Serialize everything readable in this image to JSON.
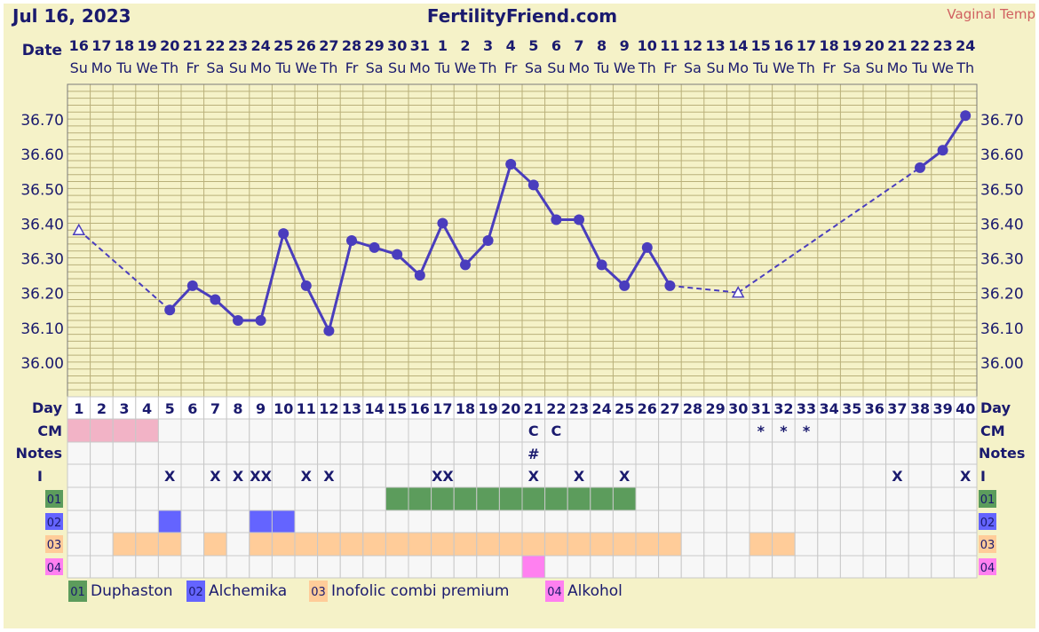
{
  "header": {
    "date": "Jul 16, 2023",
    "site": "FertilityFriend.com",
    "temp_method": "Vaginal Temp",
    "date_label": "Date",
    "day_label": "Day",
    "cm_label": "CM",
    "notes_label": "Notes",
    "intercourse_label": "I"
  },
  "colors": {
    "chart_bg": "#f5f2c8",
    "line": "#4a3dbd",
    "period": "#f2b3c6",
    "med1": "#5c9c5c",
    "med2": "#6464ff",
    "med3": "#ffcc99",
    "med4": "#ff80f0"
  },
  "chart_data": {
    "type": "line",
    "title": "",
    "ylim": [
      35.9,
      36.8
    ],
    "y_ticks": [
      "36.00",
      "36.10",
      "36.20",
      "36.30",
      "36.40",
      "36.50",
      "36.60",
      "36.70"
    ],
    "dates": [
      "16",
      "17",
      "18",
      "19",
      "20",
      "21",
      "22",
      "23",
      "24",
      "25",
      "26",
      "27",
      "28",
      "29",
      "30",
      "31",
      "1",
      "2",
      "3",
      "4",
      "5",
      "6",
      "7",
      "8",
      "9",
      "10",
      "11",
      "12",
      "13",
      "14",
      "15",
      "16",
      "17",
      "18",
      "19",
      "20",
      "21",
      "22",
      "23",
      "24"
    ],
    "weekdays": [
      "Su",
      "Mo",
      "Tu",
      "We",
      "Th",
      "Fr",
      "Sa",
      "Su",
      "Mo",
      "Tu",
      "We",
      "Th",
      "Fr",
      "Sa",
      "Su",
      "Mo",
      "Tu",
      "We",
      "Th",
      "Fr",
      "Sa",
      "Su",
      "Mo",
      "Tu",
      "We",
      "Th",
      "Fr",
      "Sa",
      "Su",
      "Mo",
      "Tu",
      "We",
      "Th",
      "Fr",
      "Sa",
      "Su",
      "Mo",
      "Tu",
      "We",
      "Th"
    ],
    "days": [
      "1",
      "2",
      "3",
      "4",
      "5",
      "6",
      "7",
      "8",
      "9",
      "10",
      "11",
      "12",
      "13",
      "14",
      "15",
      "16",
      "17",
      "18",
      "19",
      "20",
      "21",
      "22",
      "23",
      "24",
      "25",
      "26",
      "27",
      "28",
      "29",
      "30",
      "31",
      "32",
      "33",
      "34",
      "35",
      "36",
      "37",
      "38",
      "39",
      "40"
    ],
    "temps": [
      36.38,
      null,
      null,
      null,
      36.15,
      36.22,
      36.18,
      36.12,
      36.12,
      36.37,
      36.22,
      36.09,
      36.35,
      36.33,
      36.31,
      36.25,
      36.4,
      36.28,
      36.35,
      36.57,
      36.51,
      36.41,
      36.41,
      36.28,
      36.22,
      36.33,
      36.22,
      null,
      null,
      36.2,
      null,
      null,
      null,
      null,
      null,
      null,
      null,
      36.56,
      36.61,
      36.71
    ],
    "open_markers_days": [
      1,
      30
    ],
    "dashed_segments": [
      [
        1,
        5
      ],
      [
        27,
        30
      ],
      [
        30,
        38
      ]
    ],
    "solid_segments": [
      [
        5,
        27
      ],
      [
        38,
        40
      ]
    ],
    "period_days": [
      1,
      2,
      3,
      4
    ],
    "cm": [
      {
        "day": 21,
        "mark": "C"
      },
      {
        "day": 22,
        "mark": "C"
      },
      {
        "day": 31,
        "mark": "*"
      },
      {
        "day": 32,
        "mark": "*"
      },
      {
        "day": 33,
        "mark": "*"
      }
    ],
    "notes": [
      {
        "day": 21,
        "mark": "#"
      }
    ],
    "intercourse": [
      {
        "day": 5,
        "mark": "X"
      },
      {
        "day": 7,
        "mark": "X"
      },
      {
        "day": 8,
        "mark": "X"
      },
      {
        "day": 9,
        "mark": "XX"
      },
      {
        "day": 11,
        "mark": "X"
      },
      {
        "day": 12,
        "mark": "X"
      },
      {
        "day": 17,
        "mark": "XX"
      },
      {
        "day": 21,
        "mark": "X"
      },
      {
        "day": 23,
        "mark": "X"
      },
      {
        "day": 25,
        "mark": "X"
      },
      {
        "day": 37,
        "mark": "X"
      },
      {
        "day": 40,
        "mark": "X"
      }
    ],
    "medications": [
      {
        "code": "01",
        "name": "Duphaston",
        "color": "#5c9c5c",
        "days": [
          15,
          16,
          17,
          18,
          19,
          20,
          21,
          22,
          23,
          24,
          25
        ]
      },
      {
        "code": "02",
        "name": "Alchemika",
        "color": "#6464ff",
        "days": [
          5,
          9,
          10
        ]
      },
      {
        "code": "03",
        "name": "Inofolic combi premium",
        "color": "#ffcc99",
        "days": [
          3,
          4,
          5,
          7,
          9,
          10,
          11,
          12,
          13,
          14,
          15,
          16,
          17,
          18,
          19,
          20,
          21,
          22,
          23,
          24,
          25,
          26,
          27,
          31,
          32
        ]
      },
      {
        "code": "04",
        "name": "Alkohol",
        "color": "#ff80f0",
        "days": [
          21
        ]
      }
    ]
  }
}
